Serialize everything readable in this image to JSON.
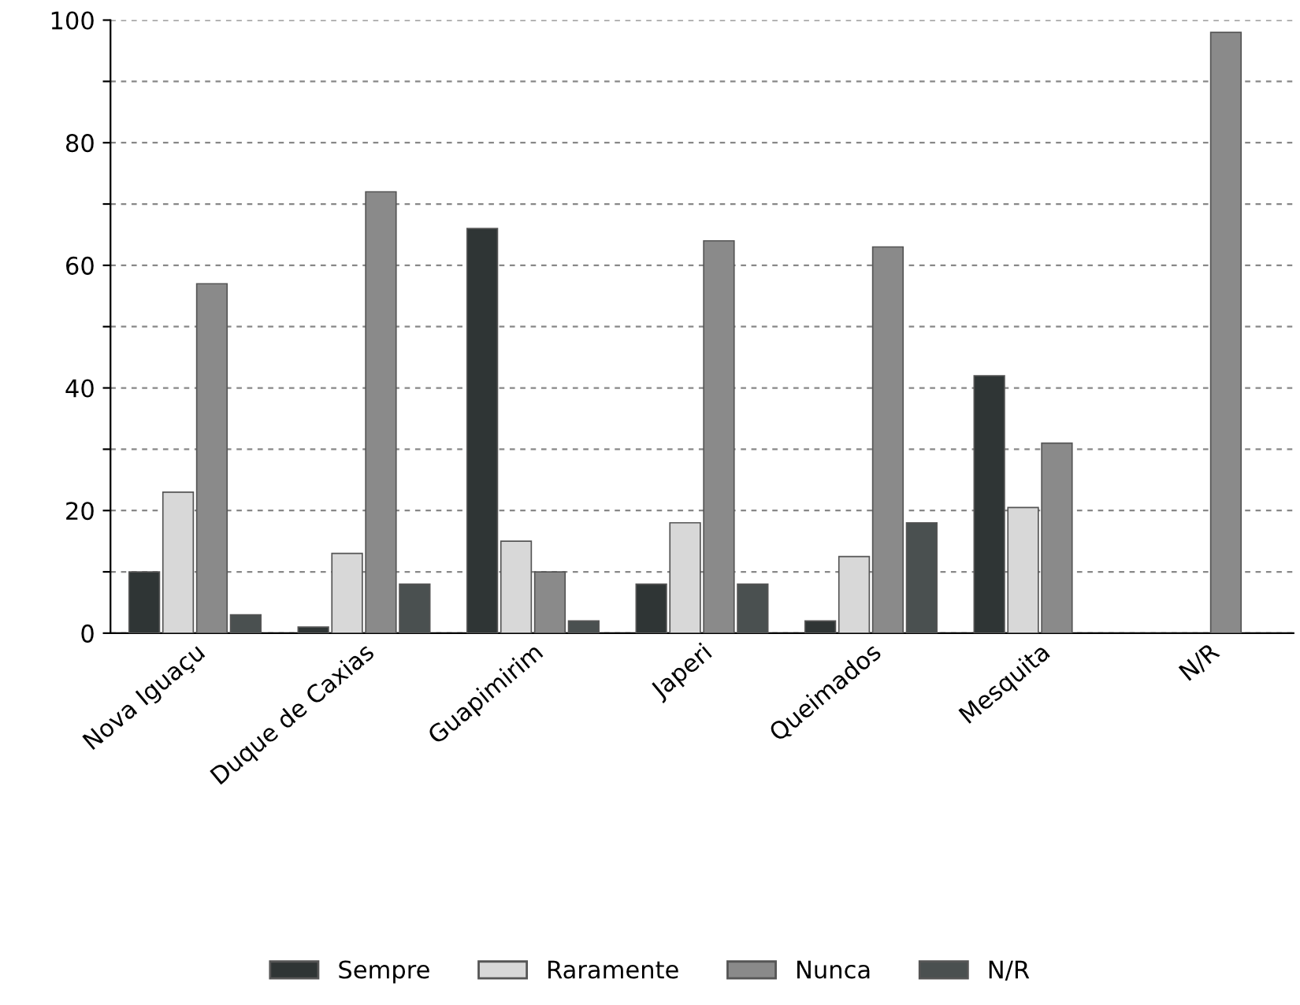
{
  "chart_data": {
    "type": "bar",
    "categories": [
      "Nova Iguaçu",
      "Duque de Caxias",
      "Guapimirim",
      "Japeri",
      "Queimados",
      "Mesquita",
      "N/R"
    ],
    "series": [
      {
        "name": "Sempre",
        "color": "#2f3535",
        "values": [
          10,
          1,
          66,
          8,
          2,
          42,
          null
        ]
      },
      {
        "name": "Raramente",
        "color": "#d8d8d8",
        "values": [
          23,
          13,
          15,
          18,
          12.5,
          20.5,
          null
        ]
      },
      {
        "name": "Nunca",
        "color": "#8a8a8a",
        "values": [
          57,
          72,
          10,
          64,
          63,
          31,
          98
        ]
      },
      {
        "name": "N/R",
        "color": "#4a5050",
        "values": [
          3,
          8,
          2,
          8,
          18,
          null,
          null
        ]
      }
    ],
    "ylim": [
      0,
      100
    ],
    "yticks": [
      0,
      {
        "value": 10,
        "label": null
      },
      20,
      {
        "value": 30,
        "label": null
      },
      40,
      {
        "value": 50,
        "label": null
      },
      60,
      {
        "value": 70,
        "label": null
      },
      80,
      {
        "value": 90,
        "label": null
      },
      100
    ],
    "grid": "y",
    "legend": "bottom"
  }
}
